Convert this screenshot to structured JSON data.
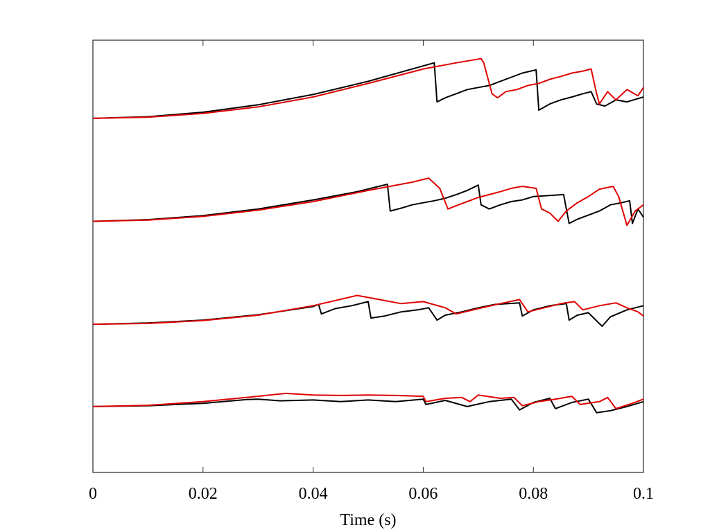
{
  "chart_data": {
    "type": "line",
    "title": "",
    "xlabel": "Time (s)",
    "ylabel": "",
    "xlim": [
      0,
      0.1
    ],
    "ylim": [
      0,
      10.5
    ],
    "xticks": [
      0,
      0.02,
      0.04,
      0.06,
      0.08,
      0.1
    ],
    "xtick_labels": [
      "0",
      "0.02",
      "0.04",
      "0.06",
      "0.08",
      "0.1"
    ],
    "grid": false,
    "legend": "none",
    "colors": {
      "black": "#000000",
      "red": "#e00000"
    },
    "panels": [
      {
        "offset": 8.6,
        "black": {
          "color": "#000000",
          "points": [
            [
              0,
              8.6
            ],
            [
              0.01,
              8.64
            ],
            [
              0.02,
              8.75
            ],
            [
              0.03,
              8.93
            ],
            [
              0.04,
              9.18
            ],
            [
              0.05,
              9.5
            ],
            [
              0.062,
              9.95
            ],
            [
              0.0625,
              9.0
            ],
            [
              0.064,
              9.1
            ],
            [
              0.066,
              9.2
            ],
            [
              0.068,
              9.3
            ],
            [
              0.07,
              9.35
            ],
            [
              0.072,
              9.4
            ],
            [
              0.074,
              9.5
            ],
            [
              0.076,
              9.6
            ],
            [
              0.078,
              9.7
            ],
            [
              0.0805,
              9.78
            ],
            [
              0.081,
              8.8
            ],
            [
              0.083,
              8.95
            ],
            [
              0.085,
              9.05
            ],
            [
              0.087,
              9.12
            ],
            [
              0.089,
              9.2
            ],
            [
              0.0905,
              9.25
            ],
            [
              0.0915,
              8.95
            ],
            [
              0.093,
              8.9
            ],
            [
              0.095,
              9.05
            ],
            [
              0.097,
              9.0
            ],
            [
              0.1,
              9.12
            ]
          ]
        },
        "red": {
          "color": "#e00000",
          "points": [
            [
              0,
              8.6
            ],
            [
              0.01,
              8.63
            ],
            [
              0.02,
              8.72
            ],
            [
              0.03,
              8.88
            ],
            [
              0.04,
              9.12
            ],
            [
              0.05,
              9.45
            ],
            [
              0.06,
              9.8
            ],
            [
              0.066,
              9.95
            ],
            [
              0.0705,
              10.05
            ],
            [
              0.071,
              9.95
            ],
            [
              0.0725,
              9.2
            ],
            [
              0.0735,
              9.1
            ],
            [
              0.075,
              9.25
            ],
            [
              0.077,
              9.3
            ],
            [
              0.079,
              9.4
            ],
            [
              0.081,
              9.45
            ],
            [
              0.083,
              9.55
            ],
            [
              0.085,
              9.62
            ],
            [
              0.087,
              9.7
            ],
            [
              0.089,
              9.75
            ],
            [
              0.0905,
              9.8
            ],
            [
              0.0915,
              9.2
            ],
            [
              0.092,
              8.95
            ],
            [
              0.0935,
              9.25
            ],
            [
              0.095,
              9.05
            ],
            [
              0.097,
              9.3
            ],
            [
              0.099,
              9.15
            ],
            [
              0.1,
              9.35
            ]
          ]
        }
      },
      {
        "offset": 6.1,
        "black": {
          "color": "#000000",
          "points": [
            [
              0,
              6.1
            ],
            [
              0.01,
              6.14
            ],
            [
              0.02,
              6.24
            ],
            [
              0.03,
              6.4
            ],
            [
              0.04,
              6.62
            ],
            [
              0.048,
              6.82
            ],
            [
              0.0535,
              7.0
            ],
            [
              0.054,
              6.35
            ],
            [
              0.056,
              6.42
            ],
            [
              0.058,
              6.5
            ],
            [
              0.06,
              6.55
            ],
            [
              0.062,
              6.6
            ],
            [
              0.064,
              6.66
            ],
            [
              0.066,
              6.75
            ],
            [
              0.068,
              6.85
            ],
            [
              0.07,
              6.98
            ],
            [
              0.0705,
              6.5
            ],
            [
              0.072,
              6.4
            ],
            [
              0.074,
              6.5
            ],
            [
              0.076,
              6.58
            ],
            [
              0.078,
              6.62
            ],
            [
              0.08,
              6.7
            ],
            [
              0.0855,
              6.75
            ],
            [
              0.0865,
              6.05
            ],
            [
              0.088,
              6.15
            ],
            [
              0.09,
              6.25
            ],
            [
              0.092,
              6.35
            ],
            [
              0.094,
              6.5
            ],
            [
              0.096,
              6.55
            ],
            [
              0.0975,
              6.6
            ],
            [
              0.098,
              6.05
            ],
            [
              0.099,
              6.4
            ],
            [
              0.1,
              6.2
            ]
          ]
        },
        "red": {
          "color": "#e00000",
          "points": [
            [
              0,
              6.1
            ],
            [
              0.01,
              6.13
            ],
            [
              0.02,
              6.22
            ],
            [
              0.03,
              6.37
            ],
            [
              0.04,
              6.58
            ],
            [
              0.05,
              6.85
            ],
            [
              0.058,
              7.05
            ],
            [
              0.061,
              7.15
            ],
            [
              0.063,
              6.9
            ],
            [
              0.0645,
              6.4
            ],
            [
              0.066,
              6.48
            ],
            [
              0.068,
              6.58
            ],
            [
              0.07,
              6.68
            ],
            [
              0.072,
              6.75
            ],
            [
              0.074,
              6.82
            ],
            [
              0.076,
              6.9
            ],
            [
              0.078,
              6.95
            ],
            [
              0.0805,
              6.9
            ],
            [
              0.0815,
              6.4
            ],
            [
              0.083,
              6.3
            ],
            [
              0.0845,
              6.1
            ],
            [
              0.086,
              6.35
            ],
            [
              0.088,
              6.55
            ],
            [
              0.09,
              6.7
            ],
            [
              0.092,
              6.88
            ],
            [
              0.0945,
              6.95
            ],
            [
              0.0955,
              6.7
            ],
            [
              0.097,
              6.0
            ],
            [
              0.0985,
              6.35
            ],
            [
              0.1,
              6.5
            ]
          ]
        }
      },
      {
        "offset": 3.6,
        "black": {
          "color": "#000000",
          "points": [
            [
              0,
              3.6
            ],
            [
              0.01,
              3.63
            ],
            [
              0.02,
              3.7
            ],
            [
              0.03,
              3.83
            ],
            [
              0.04,
              4.03
            ],
            [
              0.041,
              4.08
            ],
            [
              0.0415,
              3.85
            ],
            [
              0.044,
              3.98
            ],
            [
              0.047,
              4.05
            ],
            [
              0.05,
              4.15
            ],
            [
              0.0505,
              3.75
            ],
            [
              0.053,
              3.8
            ],
            [
              0.056,
              3.9
            ],
            [
              0.059,
              3.95
            ],
            [
              0.061,
              4.0
            ],
            [
              0.0625,
              3.7
            ],
            [
              0.064,
              3.82
            ],
            [
              0.067,
              3.9
            ],
            [
              0.07,
              4.0
            ],
            [
              0.073,
              4.08
            ],
            [
              0.0775,
              4.12
            ],
            [
              0.078,
              3.8
            ],
            [
              0.08,
              3.95
            ],
            [
              0.083,
              4.05
            ],
            [
              0.086,
              4.1
            ],
            [
              0.0865,
              3.7
            ],
            [
              0.088,
              3.82
            ],
            [
              0.09,
              3.88
            ],
            [
              0.0925,
              3.55
            ],
            [
              0.094,
              3.78
            ],
            [
              0.097,
              3.95
            ],
            [
              0.1,
              4.05
            ]
          ]
        },
        "red": {
          "color": "#e00000",
          "points": [
            [
              0,
              3.6
            ],
            [
              0.01,
              3.62
            ],
            [
              0.02,
              3.69
            ],
            [
              0.03,
              3.82
            ],
            [
              0.04,
              4.05
            ],
            [
              0.048,
              4.3
            ],
            [
              0.052,
              4.2
            ],
            [
              0.056,
              4.1
            ],
            [
              0.06,
              4.15
            ],
            [
              0.064,
              4.0
            ],
            [
              0.066,
              3.85
            ],
            [
              0.07,
              3.98
            ],
            [
              0.074,
              4.1
            ],
            [
              0.0775,
              4.2
            ],
            [
              0.079,
              3.9
            ],
            [
              0.082,
              4.0
            ],
            [
              0.085,
              4.1
            ],
            [
              0.0875,
              4.15
            ],
            [
              0.089,
              3.95
            ],
            [
              0.092,
              4.05
            ],
            [
              0.095,
              4.12
            ],
            [
              0.097,
              4.0
            ],
            [
              0.099,
              3.9
            ],
            [
              0.1,
              3.8
            ]
          ]
        }
      },
      {
        "offset": 1.6,
        "black": {
          "color": "#000000",
          "points": [
            [
              0,
              1.6
            ],
            [
              0.01,
              1.62
            ],
            [
              0.02,
              1.68
            ],
            [
              0.028,
              1.77
            ],
            [
              0.03,
              1.78
            ],
            [
              0.034,
              1.74
            ],
            [
              0.04,
              1.76
            ],
            [
              0.045,
              1.72
            ],
            [
              0.05,
              1.76
            ],
            [
              0.055,
              1.72
            ],
            [
              0.06,
              1.78
            ],
            [
              0.0605,
              1.65
            ],
            [
              0.064,
              1.75
            ],
            [
              0.068,
              1.6
            ],
            [
              0.072,
              1.72
            ],
            [
              0.076,
              1.78
            ],
            [
              0.0775,
              1.52
            ],
            [
              0.08,
              1.7
            ],
            [
              0.083,
              1.8
            ],
            [
              0.084,
              1.55
            ],
            [
              0.087,
              1.7
            ],
            [
              0.09,
              1.78
            ],
            [
              0.0915,
              1.45
            ],
            [
              0.094,
              1.5
            ],
            [
              0.097,
              1.6
            ],
            [
              0.1,
              1.72
            ]
          ]
        },
        "red": {
          "color": "#e00000",
          "points": [
            [
              0,
              1.6
            ],
            [
              0.01,
              1.63
            ],
            [
              0.02,
              1.72
            ],
            [
              0.03,
              1.85
            ],
            [
              0.035,
              1.92
            ],
            [
              0.04,
              1.88
            ],
            [
              0.045,
              1.87
            ],
            [
              0.05,
              1.88
            ],
            [
              0.055,
              1.87
            ],
            [
              0.06,
              1.85
            ],
            [
              0.0605,
              1.72
            ],
            [
              0.064,
              1.8
            ],
            [
              0.067,
              1.82
            ],
            [
              0.0685,
              1.72
            ],
            [
              0.07,
              1.88
            ],
            [
              0.074,
              1.8
            ],
            [
              0.0765,
              1.82
            ],
            [
              0.078,
              1.62
            ],
            [
              0.081,
              1.72
            ],
            [
              0.084,
              1.78
            ],
            [
              0.087,
              1.85
            ],
            [
              0.0885,
              1.65
            ],
            [
              0.092,
              1.72
            ],
            [
              0.0935,
              1.82
            ],
            [
              0.095,
              1.55
            ],
            [
              0.098,
              1.68
            ],
            [
              0.1,
              1.78
            ]
          ]
        }
      }
    ]
  }
}
